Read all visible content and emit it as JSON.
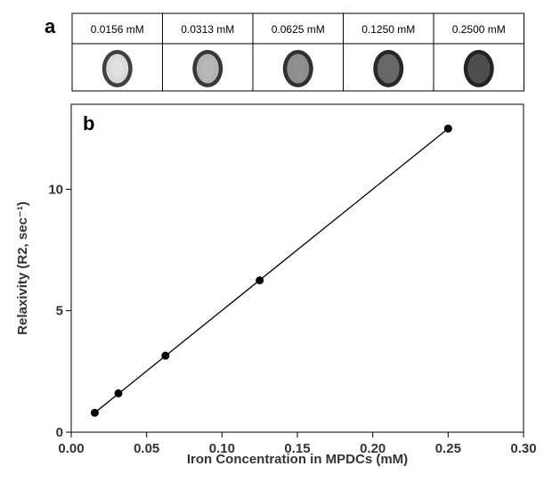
{
  "panel_a": {
    "label": "a",
    "samples": [
      {
        "concentration": "0.0156 mM",
        "darkness": 0.15
      },
      {
        "concentration": "0.0313 mM",
        "darkness": 0.35
      },
      {
        "concentration": "0.0625 mM",
        "darkness": 0.55
      },
      {
        "concentration": "0.1250 mM",
        "darkness": 0.75
      },
      {
        "concentration": "0.2500 mM",
        "darkness": 0.88
      }
    ]
  },
  "panel_b": {
    "label": "b"
  },
  "chart_data": {
    "type": "scatter",
    "x": [
      0.0156,
      0.0313,
      0.0625,
      0.125,
      0.25
    ],
    "series": [
      {
        "values": [
          0.8,
          1.6,
          3.15,
          6.25,
          12.5
        ],
        "fit_line": true,
        "color": "#000000"
      }
    ],
    "xlabel": "Iron Concentration in MPDCs (mM)",
    "ylabel": "Relaxivity (R2, sec⁻¹)",
    "xlim": [
      0,
      0.3
    ],
    "ylim": [
      0,
      13.5
    ],
    "xticks": [
      0.0,
      0.05,
      0.1,
      0.15,
      0.2,
      0.25,
      0.3
    ],
    "xtick_labels": [
      "0.00",
      "0.05",
      "0.10",
      "0.15",
      "0.20",
      "0.25",
      "0.30"
    ],
    "yticks": [
      0,
      5,
      10
    ],
    "ytick_labels": [
      "0",
      "5",
      "10"
    ],
    "grid": false,
    "legend": "none"
  }
}
